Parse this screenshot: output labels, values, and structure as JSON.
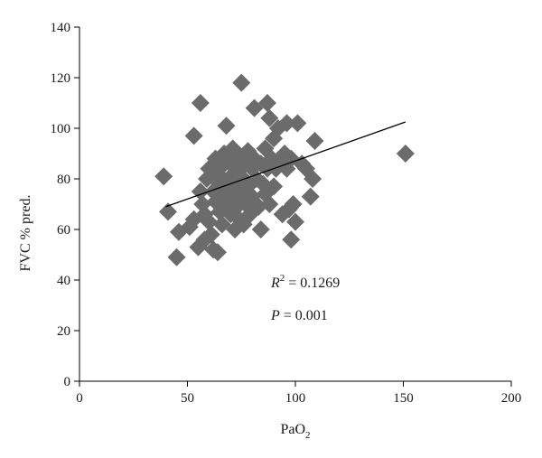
{
  "chart_data": {
    "type": "scatter",
    "xlabel": "PaO",
    "xlabel_sub": "2",
    "ylabel": "FVC % pred.",
    "xlim": [
      0,
      200
    ],
    "ylim": [
      0,
      140
    ],
    "x_ticks": [
      0,
      50,
      100,
      150,
      200
    ],
    "y_ticks": [
      0,
      20,
      40,
      60,
      80,
      100,
      120,
      140
    ],
    "x_tick_labels": [
      "0",
      "50",
      "100",
      "150",
      "200"
    ],
    "y_tick_labels": [
      "0",
      "20",
      "40",
      "60",
      "80",
      "100",
      "120",
      "140"
    ],
    "grid": false,
    "marker": "diamond",
    "marker_color": "#6b6b6b",
    "trendline": {
      "x": [
        40,
        151
      ],
      "y": [
        69,
        102.5
      ],
      "color": "#000000"
    },
    "annotations": {
      "r2_symbol": "R",
      "r2_exp": "2",
      "r2_value": " = 0.1269",
      "p_symbol": "P",
      "p_value": " = 0.001"
    },
    "points": [
      [
        39,
        81
      ],
      [
        41,
        67
      ],
      [
        45,
        49
      ],
      [
        46,
        59
      ],
      [
        51,
        61
      ],
      [
        53,
        64
      ],
      [
        53,
        97
      ],
      [
        55,
        53
      ],
      [
        56,
        110
      ],
      [
        56,
        75
      ],
      [
        57,
        70
      ],
      [
        58,
        66
      ],
      [
        58,
        56
      ],
      [
        59,
        80
      ],
      [
        60,
        84
      ],
      [
        60,
        63
      ],
      [
        61,
        58
      ],
      [
        62,
        52
      ],
      [
        62,
        75
      ],
      [
        63,
        71
      ],
      [
        63,
        88
      ],
      [
        64,
        51
      ],
      [
        64,
        82
      ],
      [
        65,
        67
      ],
      [
        65,
        78
      ],
      [
        66,
        85
      ],
      [
        66,
        62
      ],
      [
        67,
        73
      ],
      [
        67,
        90
      ],
      [
        68,
        70
      ],
      [
        68,
        101
      ],
      [
        69,
        80
      ],
      [
        69,
        76
      ],
      [
        70,
        86
      ],
      [
        70,
        66
      ],
      [
        71,
        92
      ],
      [
        71,
        72
      ],
      [
        72,
        60
      ],
      [
        72,
        78
      ],
      [
        73,
        83
      ],
      [
        73,
        69
      ],
      [
        74,
        88
      ],
      [
        74,
        64
      ],
      [
        75,
        118
      ],
      [
        75,
        74
      ],
      [
        76,
        80
      ],
      [
        76,
        62
      ],
      [
        77,
        86
      ],
      [
        77,
        70
      ],
      [
        78,
        91
      ],
      [
        78,
        77
      ],
      [
        79,
        66
      ],
      [
        80,
        84
      ],
      [
        80,
        73
      ],
      [
        81,
        108
      ],
      [
        81,
        88
      ],
      [
        82,
        80
      ],
      [
        83,
        69
      ],
      [
        84,
        86
      ],
      [
        84,
        60
      ],
      [
        85,
        78
      ],
      [
        86,
        92
      ],
      [
        86,
        74
      ],
      [
        87,
        110
      ],
      [
        87,
        84
      ],
      [
        88,
        104
      ],
      [
        88,
        70
      ],
      [
        89,
        88
      ],
      [
        90,
        77
      ],
      [
        90,
        96
      ],
      [
        91,
        84
      ],
      [
        92,
        100
      ],
      [
        93,
        87
      ],
      [
        94,
        66
      ],
      [
        95,
        90
      ],
      [
        96,
        102
      ],
      [
        96,
        84
      ],
      [
        97,
        68
      ],
      [
        98,
        56
      ],
      [
        98,
        88
      ],
      [
        99,
        70
      ],
      [
        100,
        63
      ],
      [
        101,
        102
      ],
      [
        103,
        86
      ],
      [
        105,
        84
      ],
      [
        107,
        73
      ],
      [
        108,
        80
      ],
      [
        109,
        95
      ],
      [
        151,
        90
      ]
    ]
  }
}
